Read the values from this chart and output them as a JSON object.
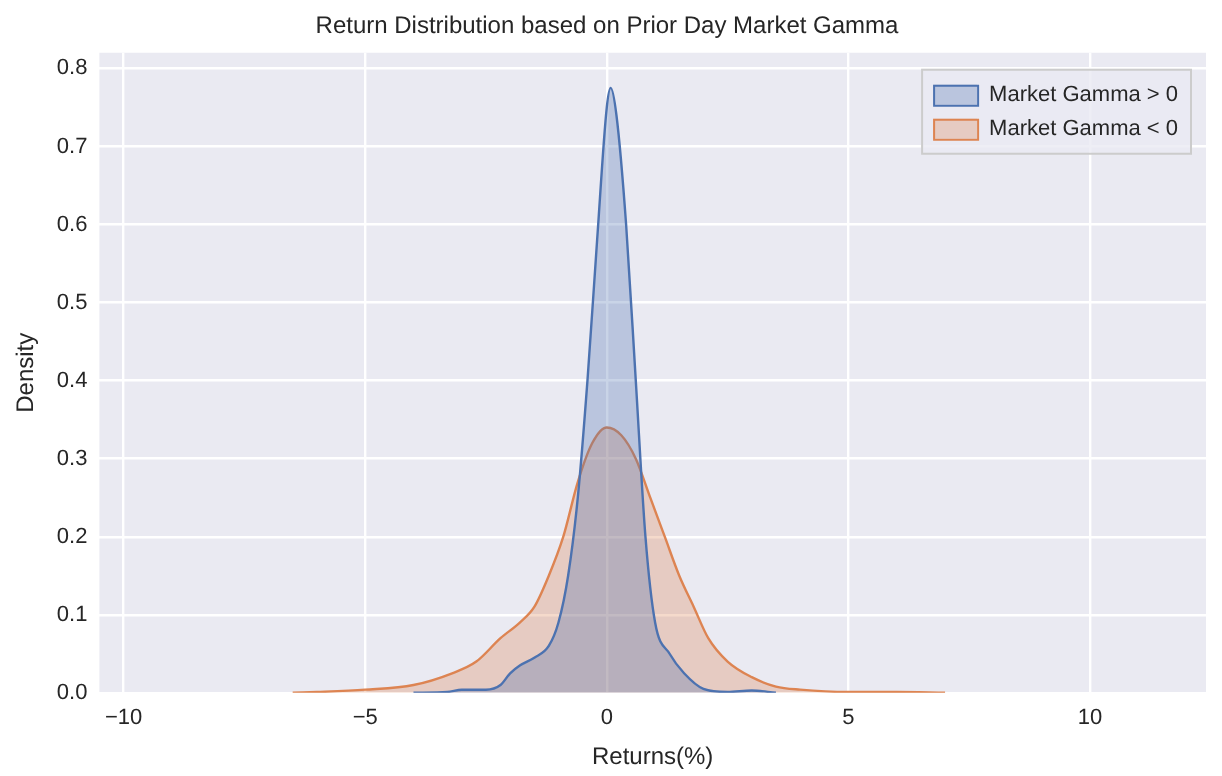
{
  "chart_data": {
    "type": "area",
    "title": "Return Distribution based on Prior Day Market Gamma",
    "xlabel": "Returns(%)",
    "ylabel": "Density",
    "series": [
      {
        "name": "Market Gamma > 0",
        "color": "#4c72b0",
        "x": [
          -4,
          -3.3,
          -3,
          -2.5,
          -2.2,
          -2,
          -1.8,
          -1.5,
          -1.2,
          -1,
          -0.8,
          -0.6,
          -0.4,
          -0.2,
          0,
          0.08,
          0.2,
          0.4,
          0.6,
          0.8,
          1,
          1.3,
          1.6,
          2,
          2.5,
          3,
          3.5
        ],
        "values": [
          0,
          0.001,
          0.004,
          0.004,
          0.01,
          0.025,
          0.035,
          0.045,
          0.06,
          0.09,
          0.15,
          0.25,
          0.4,
          0.58,
          0.75,
          0.775,
          0.74,
          0.6,
          0.4,
          0.2,
          0.09,
          0.05,
          0.025,
          0.005,
          0.001,
          0.003,
          0
        ]
      },
      {
        "name": "Market Gamma < 0",
        "color": "#dd8452",
        "x": [
          -6.5,
          -6,
          -5,
          -4,
          -3.2,
          -2.7,
          -2.2,
          -1.8,
          -1.5,
          -1.2,
          -0.9,
          -0.6,
          -0.3,
          0,
          0.3,
          0.6,
          0.9,
          1.2,
          1.5,
          1.8,
          2.1,
          2.5,
          3,
          3.5,
          4,
          5,
          6,
          7
        ],
        "values": [
          0,
          0.001,
          0.004,
          0.01,
          0.025,
          0.04,
          0.07,
          0.09,
          0.11,
          0.15,
          0.2,
          0.27,
          0.32,
          0.34,
          0.33,
          0.3,
          0.25,
          0.2,
          0.15,
          0.11,
          0.07,
          0.04,
          0.02,
          0.008,
          0.004,
          0.001,
          0.001,
          0
        ]
      }
    ],
    "xlim": [
      -10.5,
      12.4
    ],
    "xticks": [
      {
        "value": -10,
        "label": "−10"
      },
      {
        "value": -5,
        "label": "−5"
      },
      0,
      5,
      10
    ],
    "ylim": [
      0,
      0.82
    ],
    "yticks": [
      {
        "value": 0,
        "label": "0.0"
      },
      0.1,
      0.2,
      0.3,
      0.4,
      0.5,
      0.6,
      0.7,
      0.8
    ],
    "grid": true,
    "legend": "top right"
  }
}
